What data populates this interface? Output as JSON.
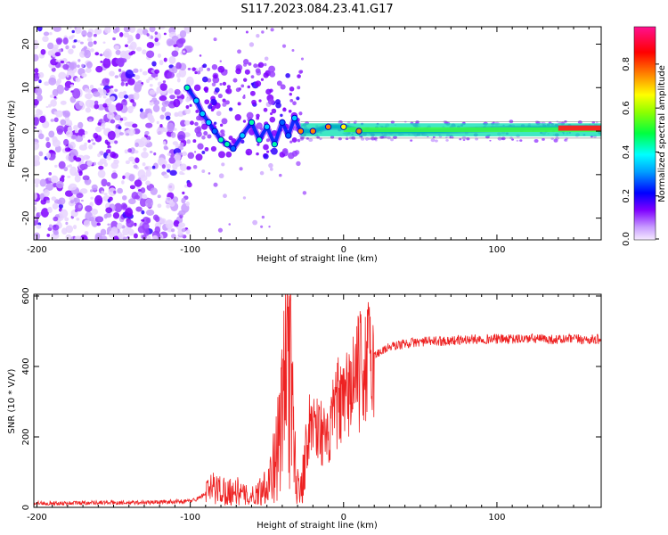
{
  "chart_data": [
    {
      "type": "heatmap",
      "title": "S117.2023.084.23.41.G17",
      "xlabel": "Height of straight line (km)",
      "ylabel": "Frequency (Hz)",
      "xlim": [
        -202,
        168
      ],
      "ylim": [
        -25,
        24
      ],
      "xticks": [
        -200,
        -100,
        0,
        100
      ],
      "yticks": [
        -20,
        -10,
        0,
        10,
        20
      ],
      "colorbar": {
        "label": "Normalized spectral amplitude",
        "range": [
          0,
          0.97
        ],
        "ticks": [
          "0.0",
          "0.2",
          "0.4",
          "0.6",
          "0.8"
        ],
        "colors": [
          "#d9b3ff",
          "#7f00ff",
          "#0000ff",
          "#00ffff",
          "#00ff00",
          "#ffff00",
          "#ff0000",
          "#ff00aa"
        ]
      },
      "features": {
        "noise_region_x": [
          -202,
          -100
        ],
        "signal_track": [
          {
            "x": -102,
            "f": 10
          },
          {
            "x": -96,
            "f": 7
          },
          {
            "x": -92,
            "f": 4
          },
          {
            "x": -88,
            "f": 2
          },
          {
            "x": -84,
            "f": 0
          },
          {
            "x": -80,
            "f": -2
          },
          {
            "x": -76,
            "f": -3
          },
          {
            "x": -72,
            "f": -4
          },
          {
            "x": -66,
            "f": -1
          },
          {
            "x": -60,
            "f": 2
          },
          {
            "x": -55,
            "f": -2
          },
          {
            "x": -50,
            "f": 1
          },
          {
            "x": -45,
            "f": -3
          },
          {
            "x": -40,
            "f": 2
          },
          {
            "x": -36,
            "f": -1
          },
          {
            "x": -32,
            "f": 3
          },
          {
            "x": -28,
            "f": 0
          },
          {
            "x": -20,
            "f": 0
          },
          {
            "x": -10,
            "f": 1
          },
          {
            "x": 0,
            "f": 1
          },
          {
            "x": 10,
            "f": 0
          },
          {
            "x": 30,
            "f": 0
          },
          {
            "x": 60,
            "f": 0
          },
          {
            "x": 100,
            "f": 0.5
          },
          {
            "x": 140,
            "f": 0.7
          },
          {
            "x": 168,
            "f": 0.8
          }
        ]
      }
    },
    {
      "type": "line",
      "xlabel": "Height of straight line (km)",
      "ylabel": "SNR (10 * V/V)",
      "xlim": [
        -202,
        168
      ],
      "ylim": [
        0,
        605
      ],
      "xticks": [
        -200,
        -100,
        0,
        100
      ],
      "yticks": [
        0,
        200,
        400,
        600
      ],
      "color": "#ee2222",
      "series": [
        {
          "name": "SNR",
          "x": [
            -202,
            -180,
            -160,
            -140,
            -120,
            -100,
            -95,
            -90,
            -85,
            -80,
            -75,
            -70,
            -65,
            -60,
            -55,
            -50,
            -45,
            -40,
            -38,
            -36,
            -34,
            -32,
            -30,
            -27,
            -24,
            -20,
            -15,
            -10,
            -5,
            0,
            5,
            10,
            15,
            20,
            25,
            30,
            40,
            50,
            60,
            70,
            80,
            90,
            100,
            110,
            120,
            130,
            140,
            150,
            160,
            168
          ],
          "values": [
            12,
            12,
            14,
            13,
            15,
            18,
            25,
            40,
            55,
            50,
            45,
            48,
            35,
            30,
            45,
            70,
            120,
            250,
            400,
            550,
            300,
            150,
            60,
            80,
            200,
            250,
            220,
            180,
            300,
            280,
            350,
            380,
            410,
            430,
            445,
            455,
            465,
            470,
            472,
            473,
            476,
            478,
            478,
            477,
            479,
            478,
            476,
            478,
            476,
            478
          ]
        }
      ]
    }
  ]
}
